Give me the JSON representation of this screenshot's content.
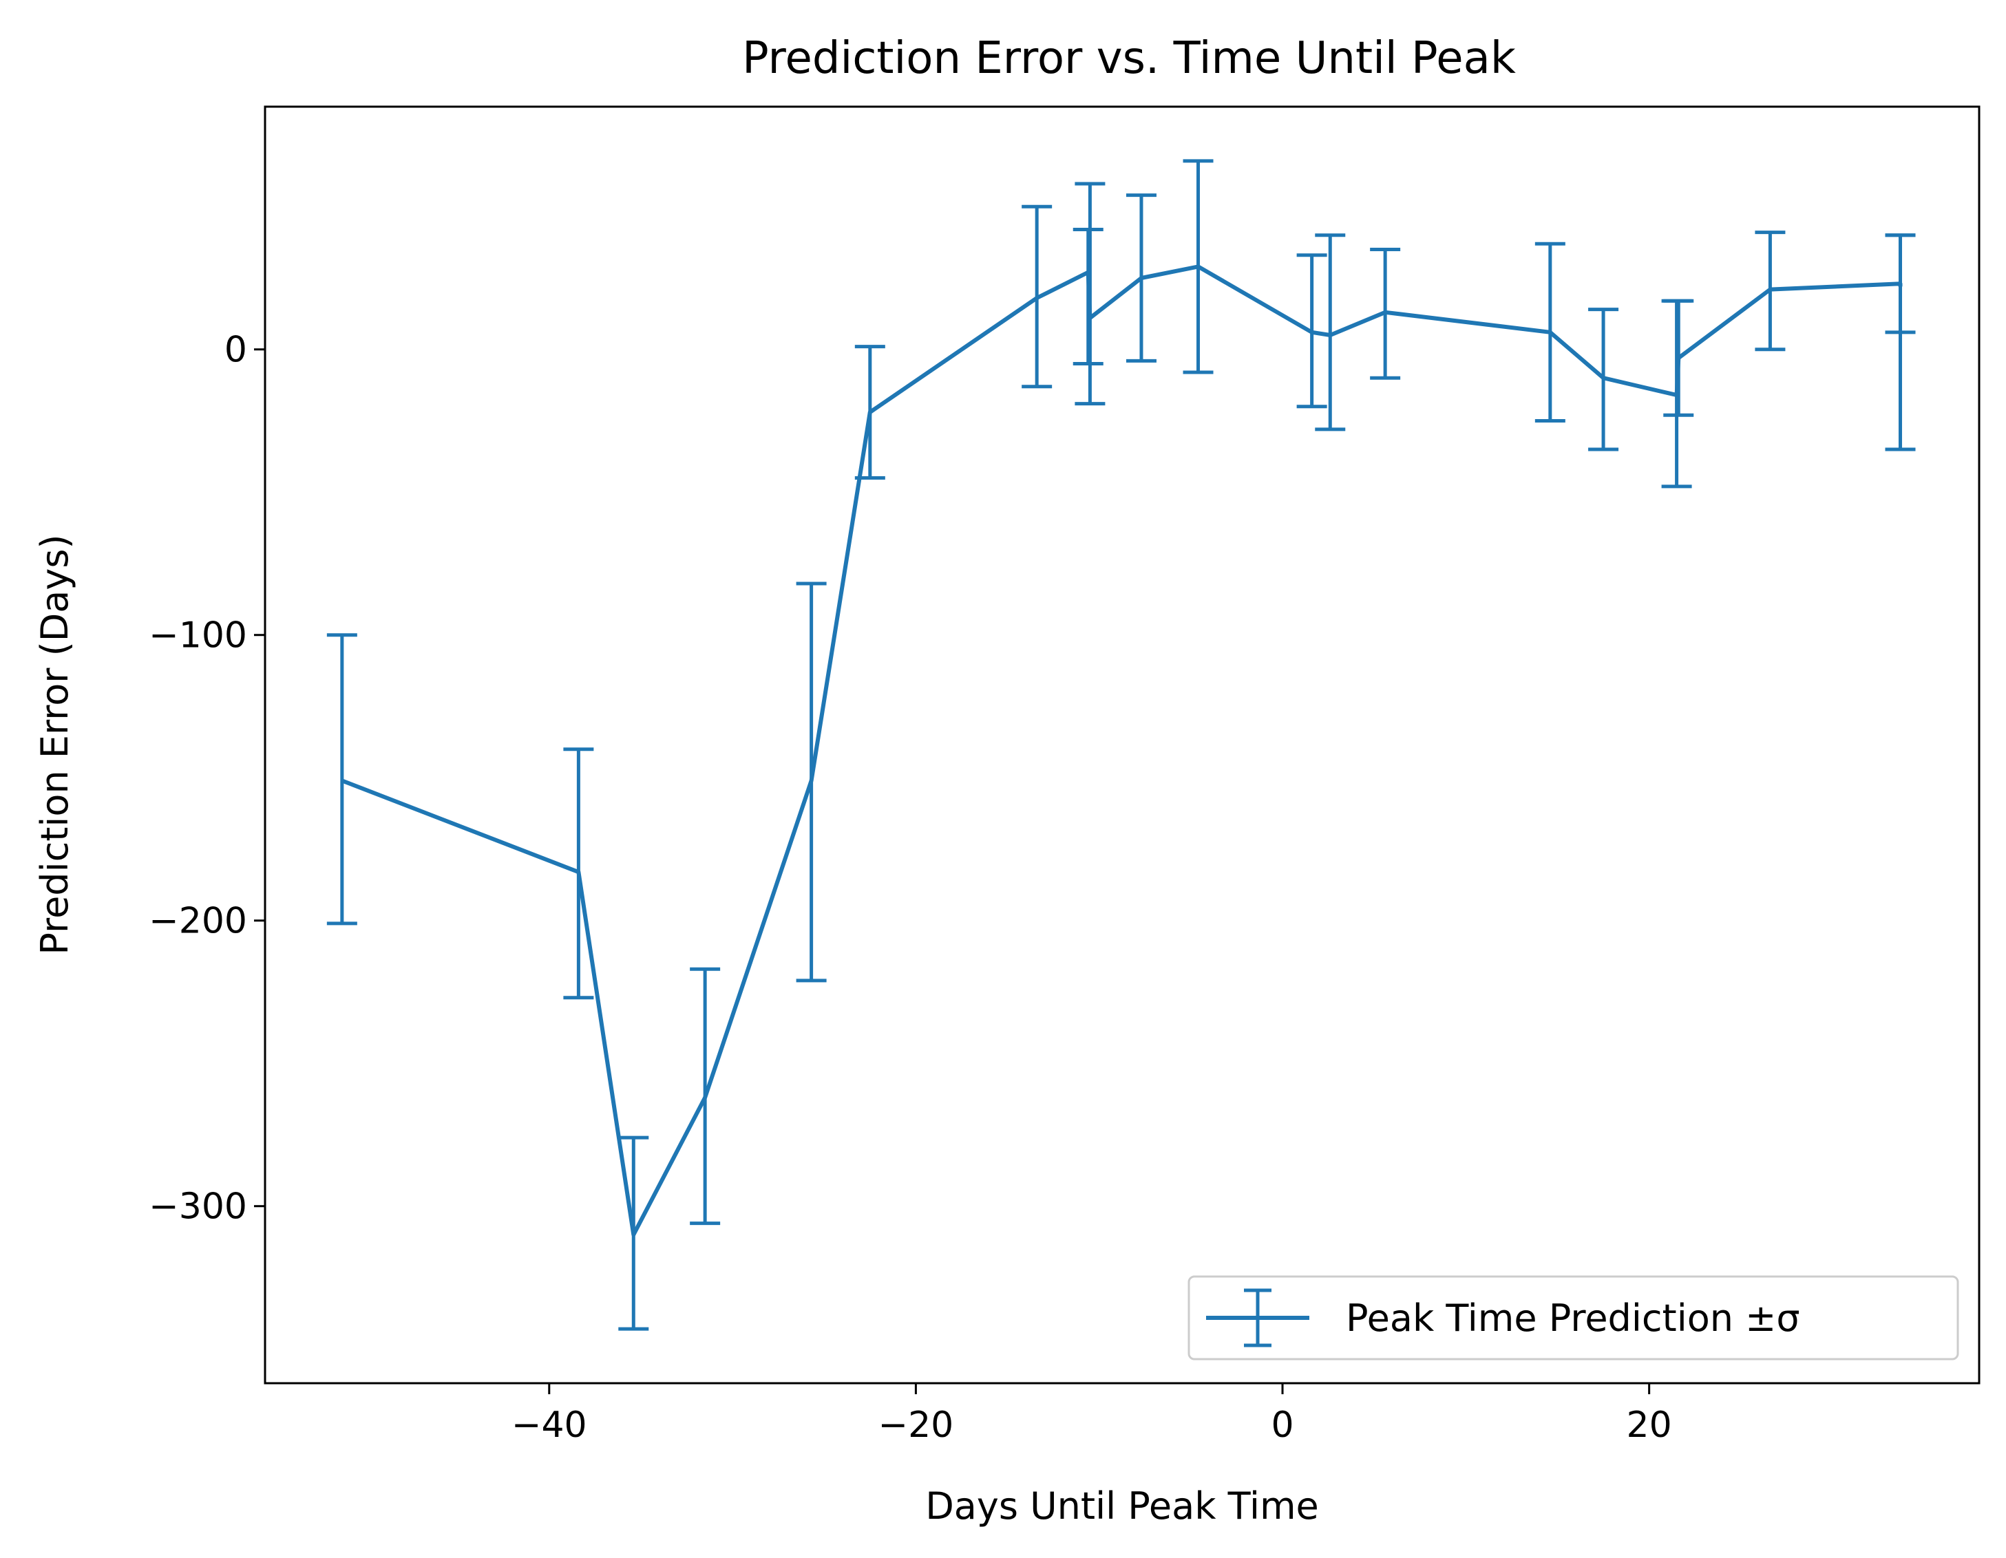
{
  "colors": {
    "series": "#1f77b4",
    "axes": "#000000",
    "background": "#ffffff",
    "legend_border": "#cccccc"
  },
  "chart_data": {
    "type": "line",
    "title": "Prediction Error vs. Time Until Peak",
    "xlabel": "Days Until Peak Time",
    "ylabel": "Prediction Error (Days)",
    "xlim": [
      -55.5,
      38
    ],
    "ylim": [
      -362,
      85
    ],
    "xticks": [
      -40,
      -20,
      0,
      20
    ],
    "xtick_labels": [
      "−40",
      "−20",
      "0",
      "20"
    ],
    "yticks": [
      0,
      -100,
      -200,
      -300
    ],
    "ytick_labels": [
      "0",
      "−100",
      "−200",
      "−300"
    ],
    "grid": false,
    "legend_position": "lower-right",
    "series": [
      {
        "name": "Peak Time Prediction ±σ",
        "error_bars": true,
        "points": [
          {
            "x": -51.3,
            "y": -151,
            "err_low": -201,
            "err_high": -100
          },
          {
            "x": -38.4,
            "y": -183,
            "err_low": -227,
            "err_high": -140
          },
          {
            "x": -35.4,
            "y": -310,
            "err_low": -343,
            "err_high": -276
          },
          {
            "x": -31.5,
            "y": -262,
            "err_low": -306,
            "err_high": -217
          },
          {
            "x": -25.7,
            "y": -151,
            "err_low": -221,
            "err_high": -82
          },
          {
            "x": -22.5,
            "y": -22,
            "err_low": -45,
            "err_high": 1
          },
          {
            "x": -13.4,
            "y": 18,
            "err_low": -13,
            "err_high": 50
          },
          {
            "x": -10.6,
            "y": 27,
            "err_low": -5,
            "err_high": 42
          },
          {
            "x": -10.5,
            "y": 11,
            "err_low": -19,
            "err_high": 58
          },
          {
            "x": -7.7,
            "y": 25,
            "err_low": -4,
            "err_high": 54
          },
          {
            "x": -4.6,
            "y": 29,
            "err_low": -8,
            "err_high": 66
          },
          {
            "x": 1.6,
            "y": 6,
            "err_low": -20,
            "err_high": 33
          },
          {
            "x": 2.6,
            "y": 5,
            "err_low": -28,
            "err_high": 40
          },
          {
            "x": 5.6,
            "y": 13,
            "err_low": -10,
            "err_high": 35
          },
          {
            "x": 14.6,
            "y": 6,
            "err_low": -25,
            "err_high": 37
          },
          {
            "x": 17.5,
            "y": -10,
            "err_low": -35,
            "err_high": 14
          },
          {
            "x": 21.5,
            "y": -16,
            "err_low": -48,
            "err_high": 17
          },
          {
            "x": 21.6,
            "y": -3,
            "err_low": -23,
            "err_high": 17
          },
          {
            "x": 26.6,
            "y": 21,
            "err_low": 0,
            "err_high": 41
          },
          {
            "x": 33.7,
            "y": 23,
            "err_low": 6,
            "err_high": 40
          },
          {
            "x": 33.7,
            "y": 22,
            "err_low": -35,
            "err_high": 40
          }
        ]
      }
    ]
  }
}
